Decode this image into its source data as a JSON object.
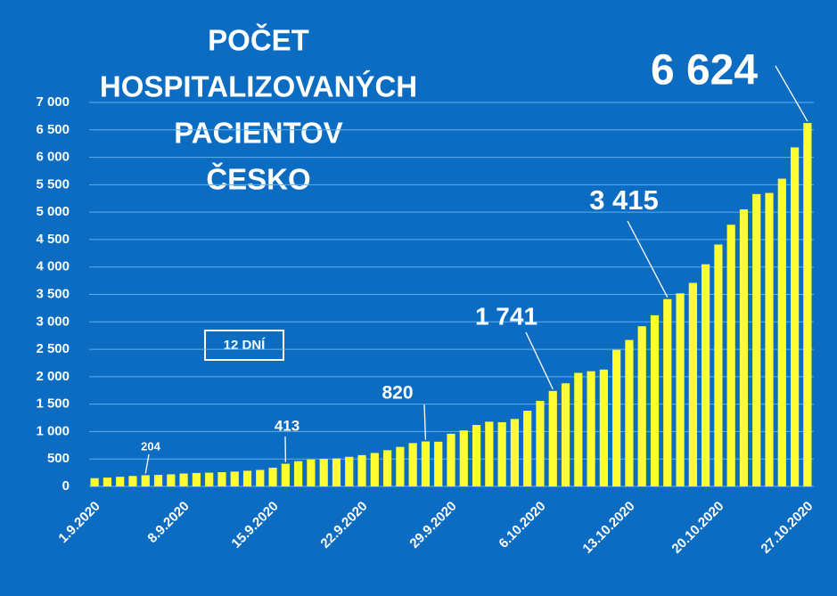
{
  "chart_data": {
    "type": "bar",
    "title": [
      "POČET",
      "HOSPITALIZOVANÝCH",
      "PACIENTOV",
      "ČESKO"
    ],
    "annotation": "12 DNÍ",
    "categories": [
      "1.9.2020",
      null,
      null,
      null,
      null,
      null,
      null,
      "8.9.2020",
      null,
      null,
      null,
      null,
      null,
      null,
      "15.9.2020",
      null,
      null,
      null,
      null,
      null,
      null,
      "22.9.2020",
      null,
      null,
      null,
      null,
      null,
      null,
      "29.9.2020",
      null,
      null,
      null,
      null,
      null,
      null,
      "6.10.2020",
      null,
      null,
      null,
      null,
      null,
      null,
      "13.10.2020",
      null,
      null,
      null,
      null,
      null,
      null,
      "20.10.2020",
      null,
      null,
      null,
      null,
      null,
      null,
      "27.10.2020"
    ],
    "values": [
      150,
      160,
      175,
      190,
      204,
      210,
      220,
      235,
      245,
      250,
      260,
      270,
      285,
      300,
      340,
      413,
      460,
      490,
      500,
      510,
      540,
      570,
      610,
      660,
      720,
      790,
      820,
      815,
      960,
      1020,
      1120,
      1180,
      1170,
      1230,
      1380,
      1560,
      1741,
      1880,
      2070,
      2100,
      2130,
      2490,
      2670,
      2920,
      3120,
      3415,
      3520,
      3710,
      4050,
      4410,
      4770,
      5050,
      5330,
      5350,
      5610,
      6180,
      6624
    ],
    "value_labels": [
      null,
      null,
      null,
      null,
      "204",
      null,
      null,
      null,
      null,
      null,
      null,
      null,
      null,
      null,
      null,
      "413",
      null,
      null,
      null,
      null,
      null,
      null,
      null,
      null,
      null,
      null,
      "820",
      null,
      null,
      null,
      null,
      null,
      null,
      null,
      null,
      null,
      "1 741",
      null,
      null,
      null,
      null,
      null,
      null,
      null,
      null,
      "3 415",
      null,
      null,
      null,
      null,
      null,
      null,
      null,
      null,
      null,
      null,
      "6 624"
    ],
    "color": "#ffff33",
    "ylim": [
      0,
      7000
    ],
    "yticks": [
      0,
      {
        "value": 500,
        "label": "500"
      },
      {
        "value": 1000,
        "label": "1 000"
      },
      {
        "value": 1500,
        "label": "1 500"
      },
      {
        "value": 2000,
        "label": "2 000"
      },
      {
        "value": 2500,
        "label": "2 500"
      },
      {
        "value": 3000,
        "label": "3 000"
      },
      {
        "value": 3500,
        "label": "3 500"
      },
      {
        "value": 4000,
        "label": "4 000"
      },
      {
        "value": 4500,
        "label": "4 500"
      },
      {
        "value": 5000,
        "label": "5 000"
      },
      {
        "value": 5500,
        "label": "5 500"
      },
      {
        "value": 6000,
        "label": "6 000"
      },
      {
        "value": 6500,
        "label": "6 500"
      },
      {
        "value": 7000,
        "label": "7 000"
      }
    ],
    "grid": true
  }
}
